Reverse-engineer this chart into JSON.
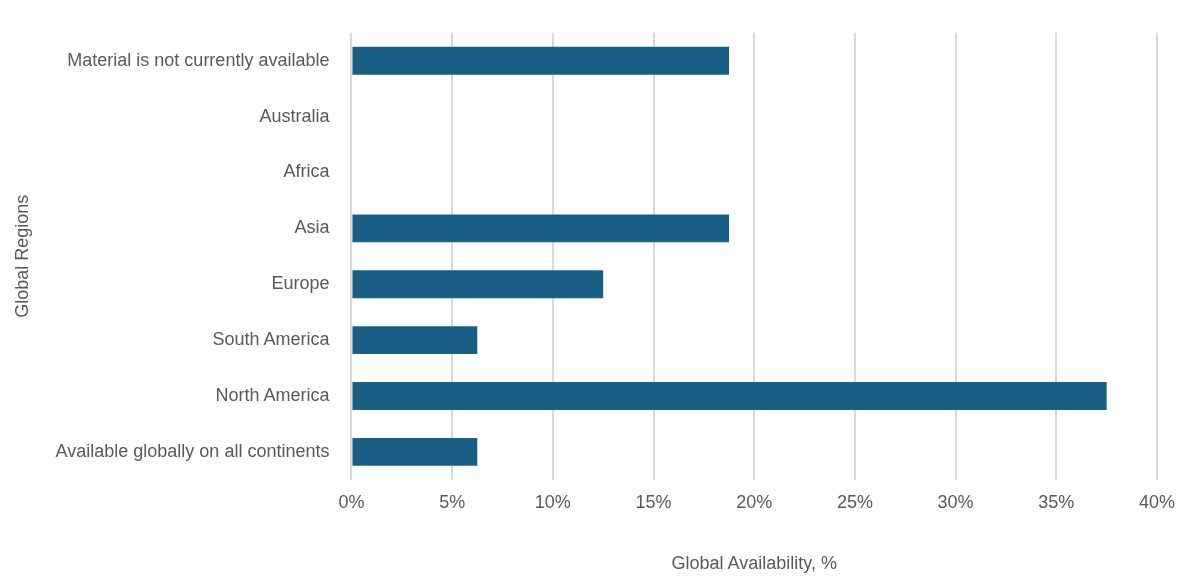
{
  "chart_data": {
    "type": "bar",
    "orientation": "horizontal",
    "xlabel": "Global Availability, %",
    "ylabel": "Global Regions",
    "categories": [
      "Material is not currently available",
      "Australia",
      "Africa",
      "Asia",
      "Europe",
      "South America",
      "North America",
      "Available globally on all continents"
    ],
    "values": [
      18.75,
      0,
      0,
      18.75,
      12.5,
      6.25,
      37.5,
      6.25
    ],
    "color": "#1a5f85",
    "xlim": [
      0,
      40
    ],
    "xticks": [
      {
        "value": 0,
        "label": "0%"
      },
      {
        "value": 5,
        "label": "5%"
      },
      {
        "value": 10,
        "label": "10%"
      },
      {
        "value": 15,
        "label": "15%"
      },
      {
        "value": 20,
        "label": "20%"
      },
      {
        "value": 25,
        "label": "25%"
      },
      {
        "value": 30,
        "label": "30%"
      },
      {
        "value": 35,
        "label": "35%"
      },
      {
        "value": 40,
        "label": "40%"
      }
    ],
    "grid": "x",
    "legend": false
  }
}
